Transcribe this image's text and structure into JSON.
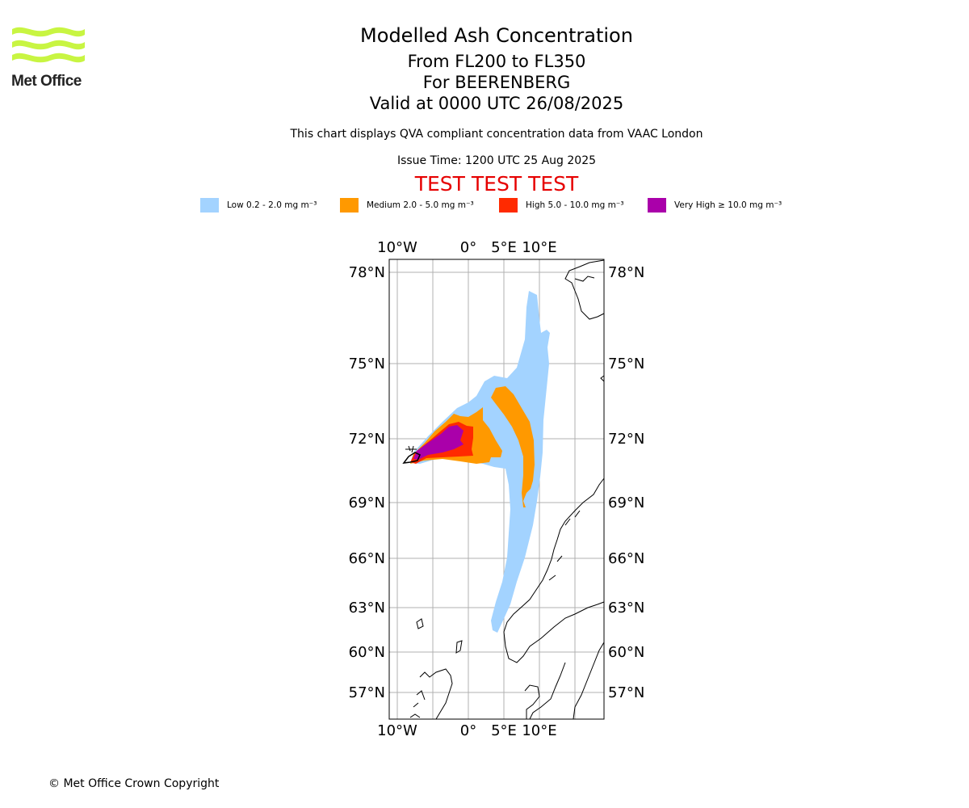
{
  "header": {
    "logo_text": "Met Office",
    "title": "Modelled Ash Concentration",
    "level_range": "From FL200 to FL350",
    "volcano": "For BEERENBERG",
    "validity": "Valid at 0000 UTC 26/08/2025",
    "compliance_note": "This chart displays QVA compliant concentration data from VAAC London",
    "issue_time": "Issue Time: 1200 UTC 25 Aug 2025",
    "test_banner": "TEST TEST TEST"
  },
  "legend": [
    {
      "label": "Low 0.2 - 2.0 mg m⁻³",
      "color": "#a3d3ff"
    },
    {
      "label": "Medium 2.0 - 5.0 mg m⁻³",
      "color": "#ff9900"
    },
    {
      "label": "High 5.0 - 10.0 mg m⁻³",
      "color": "#ff2a00"
    },
    {
      "label": "Very High ≥ 10.0 mg m⁻³",
      "color": "#aa00aa"
    }
  ],
  "map": {
    "lon_labels_top": [
      "10°W",
      "0°",
      "5°E",
      "10°E"
    ],
    "lon_labels_bottom": [
      "10°W",
      "0°",
      "5°E",
      "10°E"
    ],
    "lat_labels_left": [
      "78°N",
      "75°N",
      "72°N",
      "69°N",
      "66°N",
      "63°N",
      "60°N",
      "57°N"
    ],
    "lat_labels_right": [
      "78°N",
      "75°N",
      "72°N",
      "69°N",
      "66°N",
      "63°N",
      "60°N",
      "57°N"
    ],
    "grid_color": "#b0b0b0"
  },
  "footer": {
    "copyright": "© Met Office Crown Copyright"
  }
}
